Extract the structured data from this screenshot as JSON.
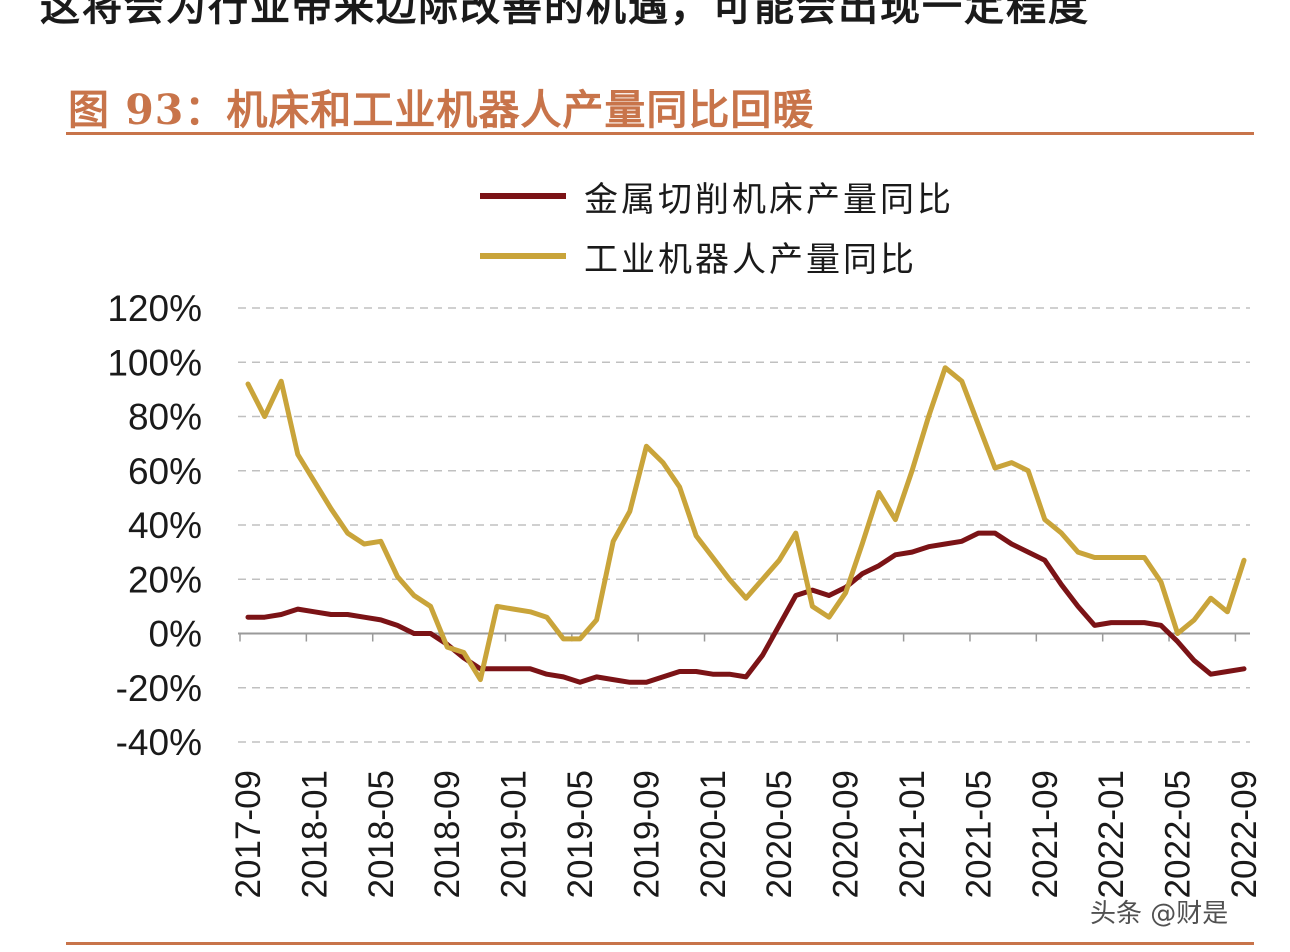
{
  "header": {
    "top_clip_text": "这将会为行业带来边际改善的机遇，可能会出现一定程度",
    "figure_title": "图 93：机床和工业机器人产量同比回暖"
  },
  "watermark": "头条 @财是",
  "colors": {
    "accent": "#c8744a",
    "series1": "#7b1316",
    "series2": "#c9a43a",
    "grid": "#c0c0c0"
  },
  "chart_data": {
    "type": "line",
    "title": "机床和工业机器人产量同比回暖",
    "xlabel": "",
    "ylabel": "",
    "ylim": [
      -40,
      120
    ],
    "ytick_values": [
      -40,
      -20,
      0,
      20,
      40,
      60,
      80,
      100,
      120
    ],
    "ytick_labels": [
      "-40%",
      "-20%",
      "0%",
      "20%",
      "40%",
      "60%",
      "80%",
      "100%",
      "120%"
    ],
    "grid": true,
    "legend_position": "top-center",
    "xtick_labels": [
      "2017-09",
      "2018-01",
      "2018-05",
      "2018-09",
      "2019-01",
      "2019-05",
      "2019-09",
      "2020-01",
      "2020-05",
      "2020-09",
      "2021-01",
      "2021-05",
      "2021-09",
      "2022-01",
      "2022-05",
      "2022-09"
    ],
    "xtick_indices": [
      0,
      4,
      8,
      12,
      16,
      20,
      24,
      28,
      32,
      36,
      40,
      44,
      48,
      52,
      56,
      60
    ],
    "n_points": 61,
    "series": [
      {
        "name": "金属切削机床产量同比",
        "color": "#7b1316",
        "values": [
          6,
          6,
          7,
          9,
          8,
          7,
          7,
          6,
          5,
          3,
          0,
          0,
          -4,
          -9,
          -13,
          -13,
          -13,
          -13,
          -15,
          -16,
          -18,
          -16,
          -17,
          -18,
          -18,
          -16,
          -14,
          -14,
          -15,
          -15,
          -16,
          -8,
          3,
          14,
          16,
          14,
          17,
          22,
          25,
          29,
          30,
          32,
          33,
          34,
          37,
          37,
          33,
          30,
          27,
          18,
          10,
          3,
          4,
          4,
          4,
          3,
          -3,
          -10,
          -15,
          -14,
          -13
        ]
      },
      {
        "name": "工业机器人产量同比",
        "color": "#c9a43a",
        "values": [
          92,
          80,
          93,
          66,
          56,
          46,
          37,
          33,
          34,
          21,
          14,
          10,
          -5,
          -7,
          -17,
          10,
          9,
          8,
          6,
          -2,
          -2,
          5,
          34,
          45,
          69,
          63,
          54,
          36,
          28,
          20,
          13,
          20,
          27,
          37,
          10,
          6,
          15,
          33,
          52,
          42,
          60,
          80,
          98,
          93,
          77,
          61,
          63,
          60,
          42,
          37,
          30,
          28,
          28,
          28,
          28,
          19,
          0,
          5,
          13,
          8,
          27
        ]
      }
    ]
  }
}
